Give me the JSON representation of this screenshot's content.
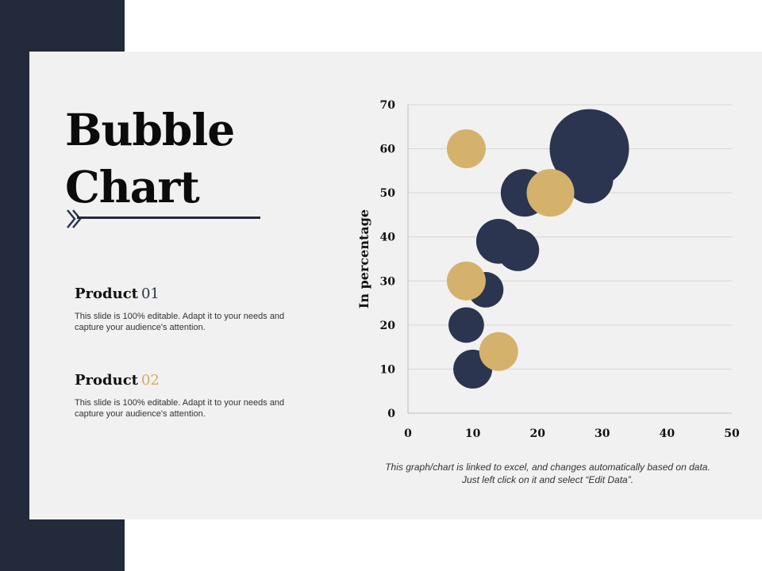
{
  "slide": {
    "title_line1": "Bubble",
    "title_line2": "Chart",
    "products": [
      {
        "label": "Product",
        "number": "01",
        "description": "This slide is 100% editable. Adapt it to your needs and capture your audience's attention."
      },
      {
        "label": "Product",
        "number": "02",
        "description": "This slide is 100% editable. Adapt it to your needs and capture your audience's attention."
      }
    ],
    "footnote": "This graph/chart is linked to excel, and changes automatically based on data. Just left click on it and select “Edit Data”."
  },
  "colors": {
    "navy": "#2b3550",
    "gold": "#d5b26b",
    "dark_bar": "#232a3c",
    "panel": "#f1f1f1"
  },
  "chart_data": {
    "type": "scatter",
    "title": "",
    "xlabel": "",
    "ylabel": "In percentage",
    "xlim": [
      0,
      50
    ],
    "ylim": [
      0,
      70
    ],
    "x_ticks": [
      0,
      10,
      20,
      30,
      40,
      50
    ],
    "y_ticks": [
      0,
      10,
      20,
      30,
      40,
      50,
      60,
      70
    ],
    "grid": "horizontal",
    "legend": "none",
    "series": [
      {
        "color": "#2b3550",
        "points": [
          {
            "x": 10,
            "y": 10,
            "size": 6
          },
          {
            "x": 9,
            "y": 20,
            "size": 5
          },
          {
            "x": 12,
            "y": 28,
            "size": 5
          },
          {
            "x": 14,
            "y": 39,
            "size": 8
          },
          {
            "x": 17,
            "y": 37,
            "size": 7
          },
          {
            "x": 18,
            "y": 50,
            "size": 9
          },
          {
            "x": 28,
            "y": 53,
            "size": 9
          },
          {
            "x": 28,
            "y": 60,
            "size": 25
          }
        ]
      },
      {
        "color": "#d5b26b",
        "points": [
          {
            "x": 9,
            "y": 60,
            "size": 6
          },
          {
            "x": 9,
            "y": 30,
            "size": 6
          },
          {
            "x": 14,
            "y": 14,
            "size": 6
          },
          {
            "x": 22,
            "y": 50,
            "size": 9
          }
        ]
      }
    ]
  }
}
